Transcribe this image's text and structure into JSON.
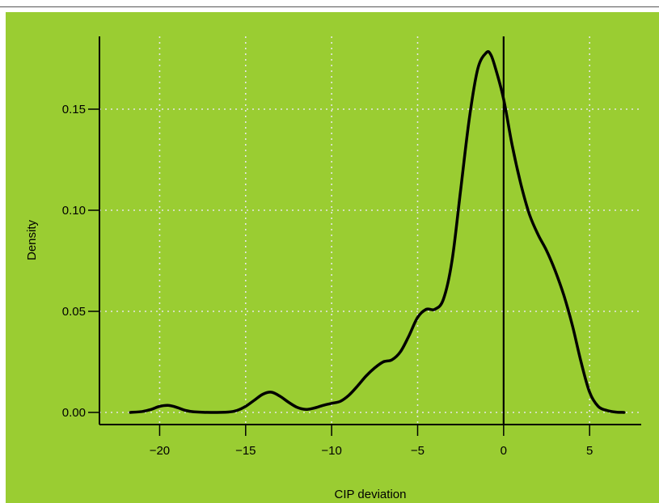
{
  "chart_data": {
    "type": "line",
    "title": "",
    "xlabel": "CIP deviation",
    "ylabel": "Density",
    "xlim": [
      -23.5,
      8.0
    ],
    "ylim": [
      -0.006,
      0.186
    ],
    "x_ticks": [
      -20,
      -15,
      -10,
      -5,
      0,
      5
    ],
    "x_tick_labels": [
      "−20",
      "−15",
      "−10",
      "−5",
      "0",
      "5"
    ],
    "y_ticks": [
      0.0,
      0.05,
      0.1,
      0.15
    ],
    "y_tick_labels": [
      "0.00",
      "0.05",
      "0.10",
      "0.15"
    ],
    "grid": true,
    "vertical_reference_line_x": 0,
    "series": [
      {
        "x": [
          -21.7,
          -21.0,
          -20.5,
          -20.0,
          -19.5,
          -19.0,
          -18.5,
          -18.0,
          -17.0,
          -16.0,
          -15.5,
          -15.0,
          -14.5,
          -14.0,
          -13.5,
          -13.0,
          -12.5,
          -12.0,
          -11.5,
          -11.0,
          -10.5,
          -10.0,
          -9.5,
          -9.0,
          -8.5,
          -8.0,
          -7.5,
          -7.0,
          -6.5,
          -6.0,
          -5.5,
          -5.0,
          -4.5,
          -4.0,
          -3.5,
          -3.0,
          -2.5,
          -2.0,
          -1.5,
          -1.0,
          -0.75,
          -0.5,
          0.0,
          0.5,
          1.0,
          1.5,
          2.0,
          2.5,
          3.0,
          3.5,
          4.0,
          4.5,
          5.0,
          5.5,
          6.0,
          6.5,
          7.0
        ],
        "y": [
          0.0,
          0.0005,
          0.0015,
          0.003,
          0.0035,
          0.0025,
          0.001,
          0.0003,
          0.0,
          0.0002,
          0.001,
          0.003,
          0.006,
          0.009,
          0.01,
          0.008,
          0.005,
          0.0025,
          0.0015,
          0.0022,
          0.0035,
          0.0045,
          0.0055,
          0.0085,
          0.013,
          0.018,
          0.022,
          0.025,
          0.026,
          0.03,
          0.038,
          0.047,
          0.051,
          0.051,
          0.056,
          0.075,
          0.11,
          0.145,
          0.17,
          0.178,
          0.177,
          0.171,
          0.155,
          0.132,
          0.113,
          0.098,
          0.088,
          0.08,
          0.07,
          0.058,
          0.043,
          0.025,
          0.01,
          0.003,
          0.001,
          0.0002,
          0.0
        ]
      }
    ]
  }
}
